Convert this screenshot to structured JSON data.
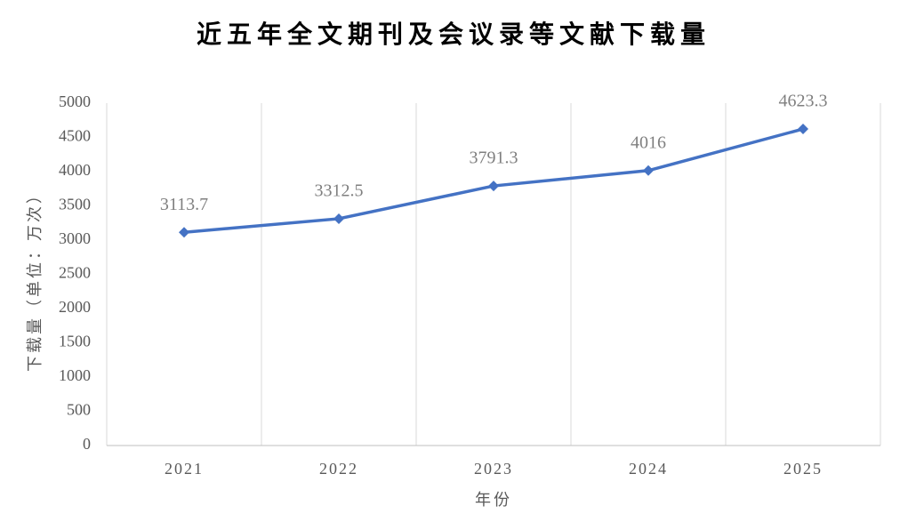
{
  "chart_data": {
    "type": "line",
    "title": "近五年全文期刊及会议录等文献下载量",
    "x_label": "年份",
    "y_label": "下载量（单位：万次）",
    "categories": [
      "2021",
      "2022",
      "2023",
      "2024",
      "2025"
    ],
    "values": [
      3113.7,
      3312.5,
      3791.3,
      4016,
      4623.3
    ],
    "color": "#4472c4",
    "marker": "diamond",
    "ylim": [
      0,
      5000
    ],
    "yticks": [
      0,
      500,
      1000,
      1500,
      2000,
      2500,
      3000,
      3500,
      4000,
      4500,
      5000
    ],
    "grid": true
  }
}
